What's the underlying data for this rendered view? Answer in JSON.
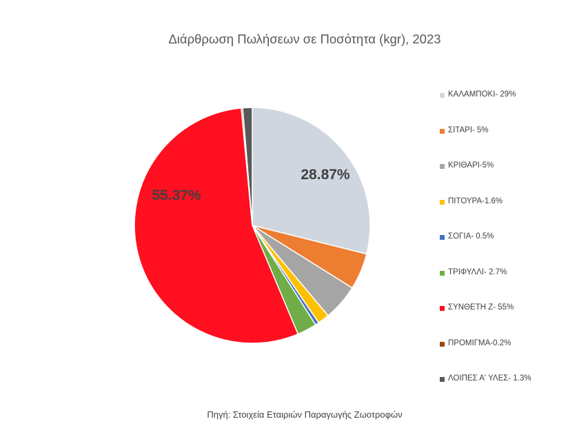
{
  "chart_data": {
    "type": "pie",
    "title": "Διάρθρωση Πωλήσεων σε Ποσότητα (kgr), 2023",
    "source": "Πηγή: Στοιχεία Εταιριών Παραγωγής Ζωοτροφών",
    "legend_position": "right",
    "start_angle_deg": 0,
    "direction": "clockwise",
    "slices": [
      {
        "legend": "ΚΑΛΑΜΠΟΚΙ- 29%",
        "value": 29,
        "color": "#D0D6E0",
        "label": "28.87%"
      },
      {
        "legend": "ΣΙΤΑΡΙ- 5%",
        "value": 5,
        "color": "#ED7D31",
        "label": ""
      },
      {
        "legend": "ΚΡΙΘΑΡΙ-5%",
        "value": 5,
        "color": "#A5A5A5",
        "label": ""
      },
      {
        "legend": "ΠΙΤΟΥΡΑ-1.6%",
        "value": 1.6,
        "color": "#FFC000",
        "label": ""
      },
      {
        "legend": "ΣΟΓΙΑ- 0.5%",
        "value": 0.5,
        "color": "#4472C4",
        "label": ""
      },
      {
        "legend": "ΤΡΙΦΥΛΛΙ- 2.7%",
        "value": 2.7,
        "color": "#70AD47",
        "label": ""
      },
      {
        "legend": "ΣΥΝΘΕΤΗ Ζ- 55%",
        "value": 55,
        "color": "#FF0F1F",
        "label": "55.37%"
      },
      {
        "legend": "ΠΡΟΜΙΓΜΑ-0.2%",
        "value": 0.2,
        "color": "#9E480E",
        "label": ""
      },
      {
        "legend": "ΛΟΙΠΕΣ Α' ΥΛΕΣ- 1.3%",
        "value": 1.3,
        "color": "#595959",
        "label": ""
      }
    ]
  }
}
